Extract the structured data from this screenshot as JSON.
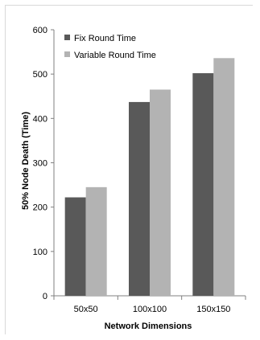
{
  "chart_data": {
    "type": "bar",
    "title": "",
    "xlabel": "Network Dimensions",
    "ylabel": "50% Node Death  (Time)",
    "categories": [
      "50x50",
      "100x100",
      "150x150"
    ],
    "series": [
      {
        "name": "Fix Round Time",
        "values": [
          222,
          437,
          502
        ],
        "color": "#595959"
      },
      {
        "name": "Variable Round Time",
        "values": [
          245,
          465,
          536
        ],
        "color": "#b3b3b3"
      }
    ],
    "ylim": [
      0,
      600
    ],
    "yticks": [
      0,
      100,
      200,
      300,
      400,
      500,
      600
    ],
    "grid": false,
    "legend_position": "top-right"
  }
}
